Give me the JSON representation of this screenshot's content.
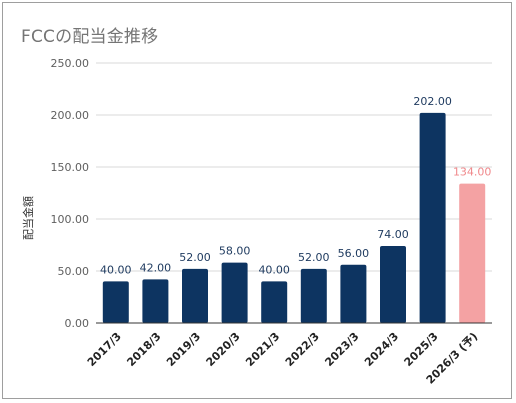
{
  "chart_data": {
    "type": "bar",
    "title": "FCCの配当金推移",
    "ylabel": "配当金額",
    "xlabel": "",
    "ylim": [
      0,
      250
    ],
    "yticks": [
      "0.00",
      "50.00",
      "100.00",
      "150.00",
      "200.00",
      "250.00"
    ],
    "grid": true,
    "legend": "none",
    "categories": [
      "2017/3",
      "2018/3",
      "2019/3",
      "2020/3",
      "2021/3",
      "2022/3",
      "2023/3",
      "2024/3",
      "2025/3",
      "2026/3 (予)"
    ],
    "values": [
      40,
      42,
      52,
      58,
      40,
      52,
      56,
      74,
      202,
      134
    ],
    "value_labels": [
      "40.00",
      "42.00",
      "52.00",
      "58.00",
      "40.00",
      "52.00",
      "56.00",
      "74.00",
      "202.00",
      "134.00"
    ],
    "estimate_flags": [
      false,
      false,
      false,
      false,
      false,
      false,
      false,
      false,
      false,
      true
    ],
    "colors": {
      "actual": "#0d3461",
      "forecast": "#f4a2a3",
      "actual_label": "#1e3a5f",
      "forecast_label": "#f0888b",
      "grid": "#d9d9d9",
      "axis": "#333333"
    }
  }
}
